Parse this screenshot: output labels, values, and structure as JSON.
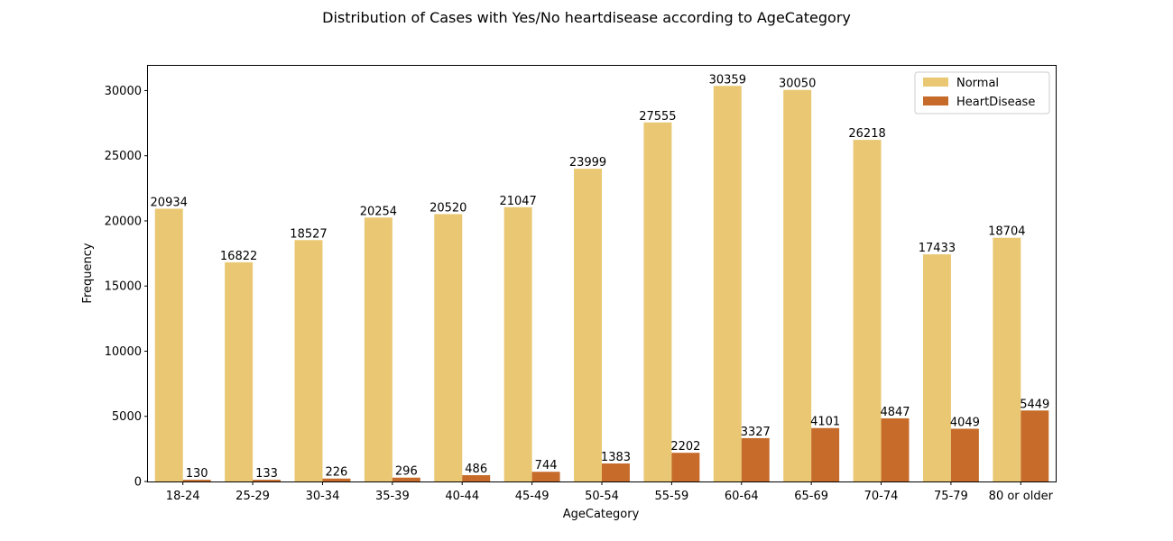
{
  "chart_data": {
    "type": "bar",
    "title": "Distribution of Cases with Yes/No heartdisease according to AgeCategory",
    "xlabel": "AgeCategory",
    "ylabel": "Frequency",
    "ylim": [
      0,
      31900
    ],
    "yticks": [
      0,
      5000,
      10000,
      15000,
      20000,
      25000,
      30000
    ],
    "categories": [
      "18-24",
      "25-29",
      "30-34",
      "35-39",
      "40-44",
      "45-49",
      "50-54",
      "55-59",
      "60-64",
      "65-69",
      "70-74",
      "75-79",
      "80 or older"
    ],
    "series": [
      {
        "name": "Normal",
        "color": "#EAC873",
        "values": [
          20934,
          16822,
          18527,
          20254,
          20520,
          21047,
          23999,
          27555,
          30359,
          30050,
          26218,
          17433,
          18704
        ]
      },
      {
        "name": "HeartDisease",
        "color": "#C66B29",
        "values": [
          130,
          133,
          226,
          296,
          486,
          744,
          1383,
          2202,
          3327,
          4101,
          4847,
          4049,
          5449
        ]
      }
    ],
    "legend_position": "top-right",
    "grid": false
  }
}
